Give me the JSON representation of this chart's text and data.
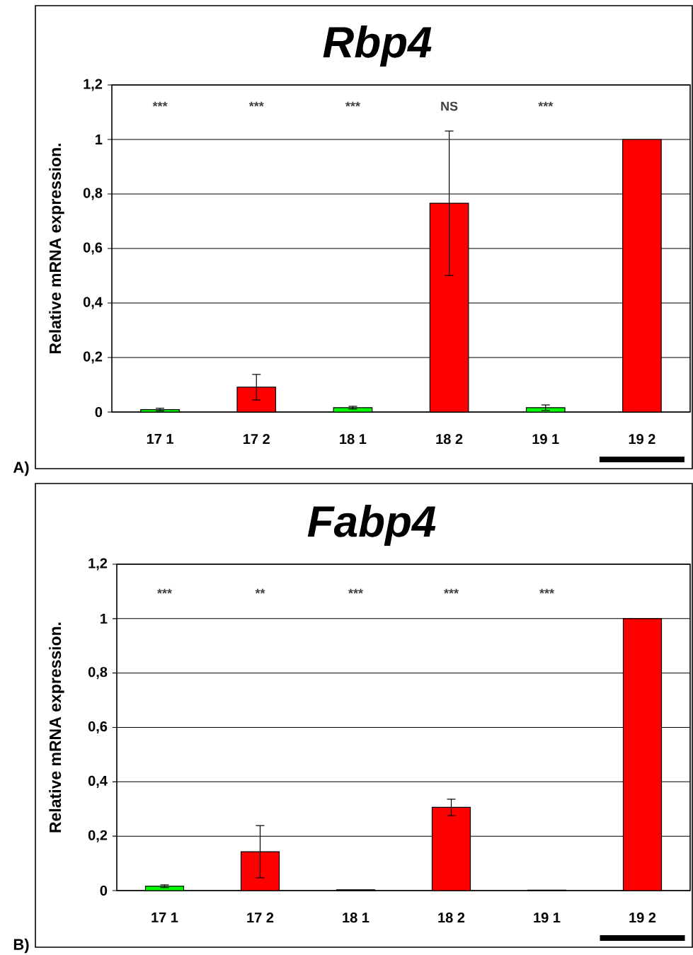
{
  "chart_data": [
    {
      "type": "bar",
      "title": "Rbp4",
      "ylabel": "Relative mRNA expression.",
      "categories": [
        "17 1",
        "17 2",
        "18 1",
        "18 2",
        "19 1",
        "19 2"
      ],
      "values": [
        0.009,
        0.091,
        0.016,
        0.766,
        0.016,
        1.0
      ],
      "errors": [
        0.005,
        0.047,
        0.005,
        0.265,
        0.01,
        null
      ],
      "colors": [
        "#00ff00",
        "#ff0000",
        "#00ff00",
        "#ff0000",
        "#00ff00",
        "#ff0000"
      ],
      "ylim": [
        0,
        1.2
      ],
      "yticks": [
        0,
        {
          "value": 0.2,
          "label": "0,2"
        },
        {
          "value": 0.4,
          "label": "0,4"
        },
        {
          "value": 0.6,
          "label": "0,6"
        },
        {
          "value": 0.8,
          "label": "0,8"
        },
        1,
        {
          "value": 1.2,
          "label": "1,2"
        }
      ],
      "grid": "y",
      "annotations": [
        "***",
        "***",
        "***",
        "NS",
        "***",
        "A)"
      ]
    },
    {
      "type": "bar",
      "title": "Fabp4",
      "ylabel": "Relative mRNA expression.",
      "categories": [
        "17 1",
        "17 2",
        "18 1",
        "18 2",
        "19 1",
        "19 2"
      ],
      "values": [
        0.016,
        0.143,
        0.003,
        0.306,
        0.002,
        1.0
      ],
      "errors": [
        0.005,
        0.096,
        null,
        0.03,
        null,
        null
      ],
      "colors": [
        "#00ff00",
        "#ff0000",
        "#00ff00",
        "#ff0000",
        "#00ff00",
        "#ff0000"
      ],
      "ylim": [
        0,
        1.2
      ],
      "yticks": [
        0,
        {
          "value": 0.2,
          "label": "0,2"
        },
        {
          "value": 0.4,
          "label": "0,4"
        },
        {
          "value": 0.6,
          "label": "0,6"
        },
        {
          "value": 0.8,
          "label": "0,8"
        },
        1,
        {
          "value": 1.2,
          "label": "1,2"
        }
      ],
      "grid": "y",
      "annotations": [
        "***",
        "**",
        "***",
        "***",
        "***",
        "B)"
      ]
    }
  ]
}
